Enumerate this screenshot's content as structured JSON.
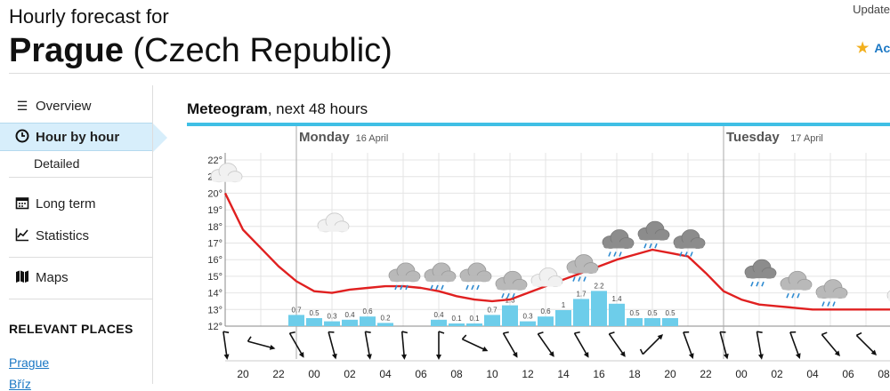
{
  "header": {
    "subtitle": "Hourly forecast for",
    "city": "Prague",
    "country": "(Czech Republic)",
    "updated_label": "Update",
    "add_favorite_label": "Ac"
  },
  "sidebar": {
    "items": [
      {
        "label": "Overview",
        "icon": "list-icon"
      },
      {
        "label": "Hour by hour",
        "icon": "clock-icon",
        "active": true
      },
      {
        "label": "Long term",
        "icon": "calendar-icon"
      },
      {
        "label": "Statistics",
        "icon": "chart-icon"
      },
      {
        "label": "Maps",
        "icon": "map-icon"
      }
    ],
    "sub_item": "Detailed",
    "section_title": "RELEVANT PLACES",
    "places": [
      "Prague",
      "Bříz"
    ]
  },
  "meteogram": {
    "title_bold": "Meteogram",
    "title_rest": ", next 48 hours",
    "days": [
      {
        "name": "Monday",
        "date": "16 April"
      },
      {
        "name": "Tuesday",
        "date": "17 April"
      }
    ]
  },
  "chart_data": {
    "type": "line",
    "title": "Meteogram, next 48 hours",
    "y_ticks": [
      "12°",
      "13°",
      "14°",
      "15°",
      "16°",
      "17°",
      "18°",
      "19°",
      "20°",
      "21°",
      "22°"
    ],
    "ylim": [
      12,
      22
    ],
    "hour_labels": [
      "20",
      "22",
      "00",
      "02",
      "04",
      "06",
      "08",
      "10",
      "12",
      "14",
      "16",
      "18",
      "20",
      "22",
      "00",
      "02",
      "04",
      "06",
      "08"
    ],
    "temperature": {
      "hours": [
        0,
        2,
        4,
        6,
        8,
        10,
        12,
        14,
        16,
        18,
        20,
        22,
        24,
        26,
        28,
        30,
        32,
        34,
        36,
        38,
        40,
        42,
        44,
        46,
        48,
        50,
        52,
        54,
        56,
        58,
        60,
        62,
        64,
        66,
        68,
        70,
        72,
        74,
        76,
        78,
        80,
        82,
        84,
        86,
        88,
        90,
        92,
        94,
        96,
        98,
        99.5
      ],
      "values": [
        20.0,
        17.8,
        16.7,
        15.6,
        14.7,
        14.1,
        14.0,
        14.2,
        14.3,
        14.4,
        14.4,
        14.3,
        14.1,
        13.8,
        13.6,
        13.5,
        13.6,
        14.0,
        14.4,
        14.8,
        15.2,
        15.6,
        16.0,
        16.3,
        16.6,
        16.4,
        16.2,
        15.2,
        14.1,
        13.6,
        13.3,
        13.2,
        13.1,
        13.0,
        13.0,
        13.0,
        13.0,
        13.0,
        13.0,
        12.9,
        12.8,
        12.7,
        12.6,
        12.5,
        12.4,
        12.2,
        12.1,
        12.0,
        12.0,
        12.3,
        12.9
      ]
    },
    "precipitation": {
      "hours": [
        42,
        44,
        46,
        48,
        50,
        52,
        58,
        60,
        62,
        64,
        66,
        68,
        70,
        72,
        74,
        76,
        78,
        80,
        82,
        84
      ],
      "values": [
        0.7,
        0.5,
        0.3,
        0.4,
        0.6,
        0.2,
        0.4,
        0.1,
        0.1,
        0.7,
        1.3,
        0.3,
        0.6,
        1.0,
        1.7,
        2.2,
        1.4,
        0.5,
        0.5,
        0.5
      ]
    },
    "weather_icons": [
      {
        "hour": 0,
        "type": "cloud",
        "temp": 21
      },
      {
        "hour": 6,
        "type": "cloud",
        "temp": 18
      },
      {
        "hour": 10,
        "type": "rain",
        "temp": 15
      },
      {
        "hour": 12,
        "type": "rain",
        "temp": 15
      },
      {
        "hour": 14,
        "type": "rain",
        "temp": 15
      },
      {
        "hour": 16,
        "type": "rain",
        "temp": 14.5
      },
      {
        "hour": 18,
        "type": "cloud",
        "temp": 14.7
      },
      {
        "hour": 20,
        "type": "rain",
        "temp": 15.5
      },
      {
        "hour": 22,
        "type": "heavy-rain",
        "temp": 17
      },
      {
        "hour": 24,
        "type": "heavy-rain",
        "temp": 17.5
      },
      {
        "hour": 26,
        "type": "heavy-rain",
        "temp": 17
      },
      {
        "hour": 30,
        "type": "heavy-rain",
        "temp": 15.2
      },
      {
        "hour": 32,
        "type": "rain",
        "temp": 14.5
      },
      {
        "hour": 34,
        "type": "rain",
        "temp": 14
      },
      {
        "hour": 38,
        "type": "cloud",
        "temp": 13.8
      },
      {
        "hour": 40,
        "type": "cloud",
        "temp": 13.8
      },
      {
        "hour": 42,
        "type": "cloud",
        "temp": 13.7
      },
      {
        "hour": 44,
        "type": "cloud",
        "temp": 13.4
      },
      {
        "hour": 46,
        "type": "sun",
        "temp": 13.5
      }
    ],
    "wind_angles_deg": [
      -8,
      -75,
      -30,
      -15,
      -10,
      -5,
      0,
      -65,
      -30,
      -35,
      -30,
      -35,
      -135,
      -20,
      -15,
      -10,
      -20,
      -40,
      -45,
      -40,
      -40,
      -45,
      -40,
      -50,
      -55,
      -30
    ],
    "day_markers": [
      {
        "name": "Monday",
        "date": "16 April"
      },
      {
        "name": "Tuesday",
        "date": "17 April"
      }
    ],
    "grid": true,
    "colors": {
      "temperature": "#e02020",
      "precipitation": "#6dcdea",
      "grid": "#e4e4e4",
      "accent": "#3fbfe5"
    }
  }
}
